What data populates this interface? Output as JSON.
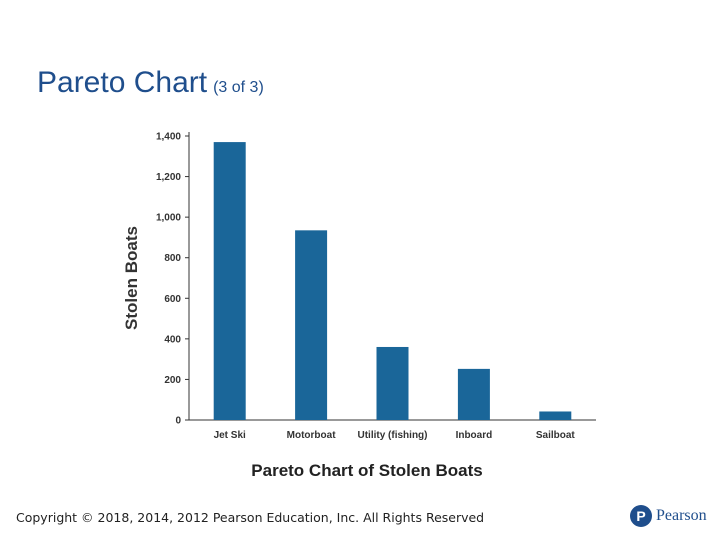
{
  "slide": {
    "title_main": "Pareto Chart",
    "title_sub": "(3 of 3)",
    "footer": "Copyright © 2018, 2014, 2012 Pearson Education, Inc. All Rights Reserved",
    "logo_text": "Pearson",
    "logo_mark": "P"
  },
  "colors": {
    "bar": "#1a6699",
    "title": "#1f4e8c",
    "axis": "#333333"
  },
  "chart_data": {
    "type": "bar",
    "title": "Pareto Chart of Stolen Boats",
    "xlabel": "",
    "ylabel": "Stolen Boats",
    "categories": [
      "Jet Ski",
      "Motorboat",
      "Utility (fishing)",
      "Inboard",
      "Sailboat"
    ],
    "values": [
      1370,
      935,
      360,
      252,
      42
    ],
    "ylim": [
      0,
      1400
    ],
    "yticks": [
      0,
      200,
      400,
      600,
      800,
      1000,
      1200,
      1400
    ],
    "ytick_labels": [
      "0",
      "200",
      "400",
      "600",
      "800",
      "1,000",
      "1,200",
      "1,400"
    ],
    "grid": false,
    "legend": "none"
  }
}
